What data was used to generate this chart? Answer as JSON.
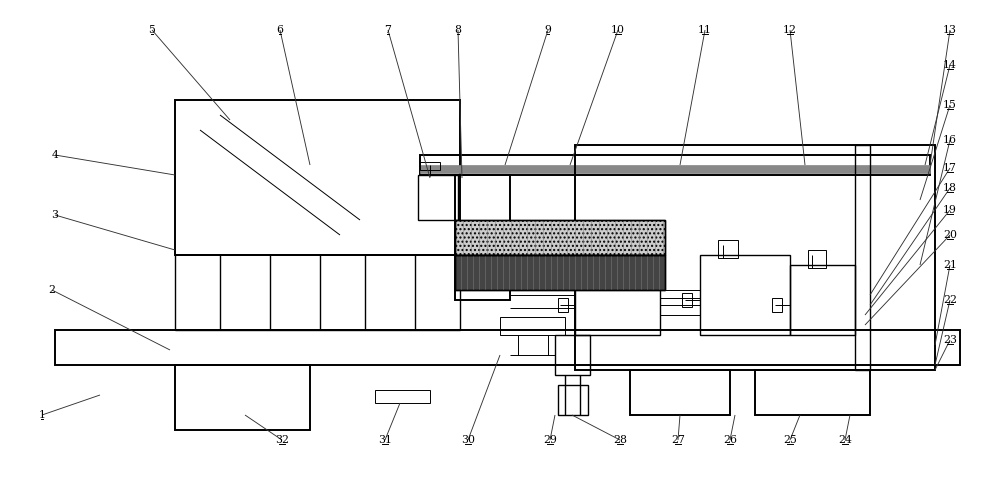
{
  "fig_width": 10.0,
  "fig_height": 4.78,
  "bg_color": "#ffffff",
  "line_color": "#000000",
  "lw_heavy": 1.4,
  "lw_med": 1.0,
  "lw_thin": 0.7,
  "lw_leader": 0.65,
  "label_fs": 7.8
}
